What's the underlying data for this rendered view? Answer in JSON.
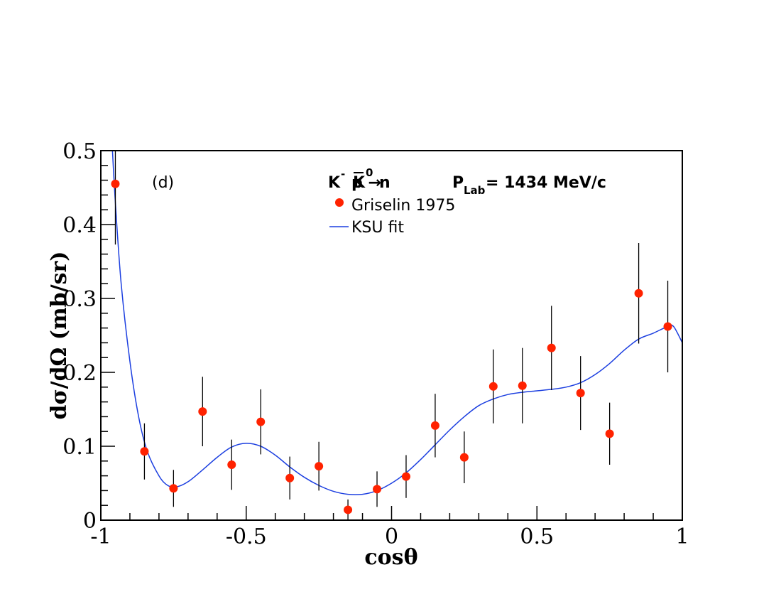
{
  "chart_data": {
    "type": "scatter",
    "panel_label": "(d)",
    "reaction": {
      "beam": "K",
      "beam_charge": "-",
      "rest": "p →",
      "product": "K",
      "product_charge": "0",
      "neutron": "n",
      "plab_prefix": "P",
      "plab_sub": "Lab",
      "plab_value": "= 1434 MeV/c"
    },
    "xlabel": "cosθ",
    "ylabel": "dσ/dΩ (mb/sr)",
    "xlim": [
      -1,
      1
    ],
    "ylim": [
      0,
      0.5
    ],
    "x_ticks": [
      "-1",
      "-0.5",
      "0",
      "0.5",
      "1"
    ],
    "y_ticks": [
      "0",
      "0.1",
      "0.2",
      "0.3",
      "0.4",
      "0.5"
    ],
    "legend_position": "top-right",
    "colors": {
      "data": "#ff2200",
      "fit": "#1c3fe0",
      "axis": "#000000"
    },
    "series": [
      {
        "name": "Griselin 1975",
        "kind": "points",
        "x": [
          -0.95,
          -0.85,
          -0.75,
          -0.65,
          -0.55,
          -0.45,
          -0.35,
          -0.25,
          -0.15,
          -0.05,
          0.05,
          0.15,
          0.25,
          0.35,
          0.45,
          0.55,
          0.65,
          0.75,
          0.85,
          0.95
        ],
        "y": [
          0.455,
          0.093,
          0.043,
          0.147,
          0.075,
          0.133,
          0.057,
          0.073,
          0.014,
          0.042,
          0.059,
          0.128,
          0.085,
          0.181,
          0.182,
          0.233,
          0.172,
          0.117,
          0.307,
          0.262
        ],
        "err": [
          0.082,
          0.038,
          0.025,
          0.047,
          0.034,
          0.044,
          0.029,
          0.033,
          0.014,
          0.024,
          0.029,
          0.043,
          0.035,
          0.05,
          0.051,
          0.057,
          0.05,
          0.042,
          0.068,
          0.062
        ]
      },
      {
        "name": "KSU fit",
        "kind": "line",
        "x": [
          -0.96,
          -0.95,
          -0.93,
          -0.9,
          -0.87,
          -0.84,
          -0.8,
          -0.77,
          -0.74,
          -0.7,
          -0.65,
          -0.6,
          -0.55,
          -0.5,
          -0.45,
          -0.4,
          -0.35,
          -0.3,
          -0.25,
          -0.2,
          -0.15,
          -0.1,
          -0.05,
          0.0,
          0.05,
          0.1,
          0.15,
          0.2,
          0.25,
          0.3,
          0.35,
          0.4,
          0.45,
          0.5,
          0.55,
          0.6,
          0.65,
          0.7,
          0.75,
          0.8,
          0.85,
          0.9,
          0.95,
          0.97,
          1.0
        ],
        "y": [
          0.5,
          0.43,
          0.32,
          0.215,
          0.14,
          0.093,
          0.06,
          0.047,
          0.045,
          0.052,
          0.068,
          0.085,
          0.099,
          0.104,
          0.1,
          0.088,
          0.072,
          0.058,
          0.047,
          0.039,
          0.035,
          0.035,
          0.04,
          0.05,
          0.064,
          0.082,
          0.102,
          0.122,
          0.14,
          0.155,
          0.164,
          0.17,
          0.173,
          0.175,
          0.177,
          0.18,
          0.186,
          0.197,
          0.212,
          0.23,
          0.245,
          0.253,
          0.262,
          0.262,
          0.24
        ]
      }
    ]
  }
}
